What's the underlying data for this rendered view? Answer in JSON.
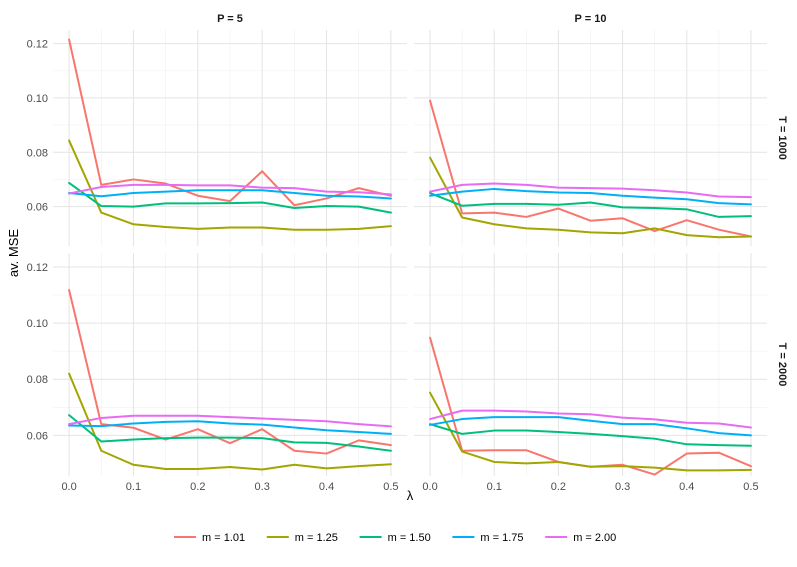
{
  "chart_data": {
    "type": "line",
    "ylabel": "av. MSE",
    "xlabel": "λ",
    "x": [
      0.0,
      0.05,
      0.1,
      0.15,
      0.2,
      0.25,
      0.3,
      0.35,
      0.4,
      0.45,
      0.5
    ],
    "x_ticks": [
      "0.0",
      "0.1",
      "0.2",
      "0.3",
      "0.4",
      "0.5"
    ],
    "y_ticks": [
      "0.06",
      "0.08",
      "0.10",
      "0.12"
    ],
    "xlim": [
      -0.025,
      0.525
    ],
    "ylim": [
      0.0455,
      0.125
    ],
    "column_facets": [
      "P = 5",
      "P = 10"
    ],
    "row_facets": [
      "T = 1000",
      "T = 2000"
    ],
    "legend_position": "bottom",
    "series_styles": [
      {
        "name": "m = 1.01",
        "color": "#F8766D"
      },
      {
        "name": "m = 1.25",
        "color": "#A3A500"
      },
      {
        "name": "m = 1.50",
        "color": "#00BF7D"
      },
      {
        "name": "m = 1.75",
        "color": "#00B0F6"
      },
      {
        "name": "m = 2.00",
        "color": "#E76BF3"
      }
    ],
    "panels": [
      {
        "col": "P = 5",
        "row": "T = 1000",
        "series": [
          {
            "name": "m = 1.01",
            "values": [
              0.1215,
              0.068,
              0.07,
              0.0685,
              0.064,
              0.062,
              0.073,
              0.0605,
              0.063,
              0.0668,
              0.064
            ]
          },
          {
            "name": "m = 1.25",
            "values": [
              0.0843,
              0.0578,
              0.0535,
              0.0525,
              0.0518,
              0.0523,
              0.0523,
              0.0515,
              0.0515,
              0.0518,
              0.0528
            ]
          },
          {
            "name": "m = 1.50",
            "values": [
              0.0687,
              0.0602,
              0.06,
              0.0612,
              0.0612,
              0.0613,
              0.0615,
              0.0595,
              0.0602,
              0.06,
              0.0578
            ]
          },
          {
            "name": "m = 1.75",
            "values": [
              0.065,
              0.0638,
              0.065,
              0.0655,
              0.066,
              0.066,
              0.066,
              0.065,
              0.064,
              0.0637,
              0.063
            ]
          },
          {
            "name": "m = 2.00",
            "values": [
              0.0648,
              0.0672,
              0.068,
              0.068,
              0.0678,
              0.0678,
              0.067,
              0.0668,
              0.0655,
              0.0653,
              0.0645
            ]
          }
        ]
      },
      {
        "col": "P = 10",
        "row": "T = 1000",
        "series": [
          {
            "name": "m = 1.01",
            "values": [
              0.099,
              0.0575,
              0.0578,
              0.0562,
              0.0593,
              0.0548,
              0.0557,
              0.051,
              0.055,
              0.0515,
              0.049
            ]
          },
          {
            "name": "m = 1.25",
            "values": [
              0.078,
              0.056,
              0.0535,
              0.052,
              0.0515,
              0.0505,
              0.0502,
              0.052,
              0.0495,
              0.0487,
              0.049
            ]
          },
          {
            "name": "m = 1.50",
            "values": [
              0.065,
              0.0603,
              0.061,
              0.061,
              0.0607,
              0.0615,
              0.0597,
              0.0595,
              0.059,
              0.0562,
              0.0565
            ]
          },
          {
            "name": "m = 1.75",
            "values": [
              0.064,
              0.0655,
              0.0665,
              0.0657,
              0.0652,
              0.065,
              0.064,
              0.0633,
              0.0627,
              0.0613,
              0.0608
            ]
          },
          {
            "name": "m = 2.00",
            "values": [
              0.0655,
              0.068,
              0.0685,
              0.068,
              0.067,
              0.0668,
              0.0666,
              0.066,
              0.0652,
              0.0637,
              0.0635
            ]
          }
        ]
      },
      {
        "col": "P = 5",
        "row": "T = 2000",
        "series": [
          {
            "name": "m = 1.01",
            "values": [
              0.1118,
              0.064,
              0.0627,
              0.0585,
              0.0622,
              0.0572,
              0.0622,
              0.0545,
              0.0535,
              0.0582,
              0.0565
            ]
          },
          {
            "name": "m = 1.25",
            "values": [
              0.082,
              0.0545,
              0.0495,
              0.048,
              0.048,
              0.0487,
              0.0478,
              0.0495,
              0.0482,
              0.049,
              0.0497
            ]
          },
          {
            "name": "m = 1.50",
            "values": [
              0.0672,
              0.0578,
              0.0585,
              0.059,
              0.0592,
              0.0592,
              0.059,
              0.0575,
              0.0573,
              0.056,
              0.0545
            ]
          },
          {
            "name": "m = 1.75",
            "values": [
              0.0635,
              0.0633,
              0.0642,
              0.0648,
              0.065,
              0.0642,
              0.0638,
              0.0628,
              0.0618,
              0.0612,
              0.0605
            ]
          },
          {
            "name": "m = 2.00",
            "values": [
              0.064,
              0.0662,
              0.067,
              0.067,
              0.067,
              0.0665,
              0.066,
              0.0655,
              0.065,
              0.064,
              0.0632
            ]
          }
        ]
      },
      {
        "col": "P = 10",
        "row": "T = 2000",
        "series": [
          {
            "name": "m = 1.01",
            "values": [
              0.0948,
              0.0545,
              0.0547,
              0.0547,
              0.0505,
              0.0488,
              0.0495,
              0.046,
              0.0535,
              0.0538,
              0.049
            ]
          },
          {
            "name": "m = 1.25",
            "values": [
              0.0752,
              0.0542,
              0.0505,
              0.05,
              0.0505,
              0.0488,
              0.049,
              0.0485,
              0.0475,
              0.0475,
              0.0477
            ]
          },
          {
            "name": "m = 1.50",
            "values": [
              0.064,
              0.0605,
              0.0617,
              0.0617,
              0.0612,
              0.0605,
              0.0597,
              0.0588,
              0.0568,
              0.0565,
              0.0563
            ]
          },
          {
            "name": "m = 1.75",
            "values": [
              0.0637,
              0.0658,
              0.0665,
              0.0665,
              0.0665,
              0.0652,
              0.064,
              0.064,
              0.0625,
              0.0608,
              0.06
            ]
          },
          {
            "name": "m = 2.00",
            "values": [
              0.0658,
              0.0688,
              0.0688,
              0.0685,
              0.0678,
              0.0675,
              0.0663,
              0.0657,
              0.0645,
              0.0642,
              0.0628
            ]
          }
        ]
      }
    ]
  }
}
